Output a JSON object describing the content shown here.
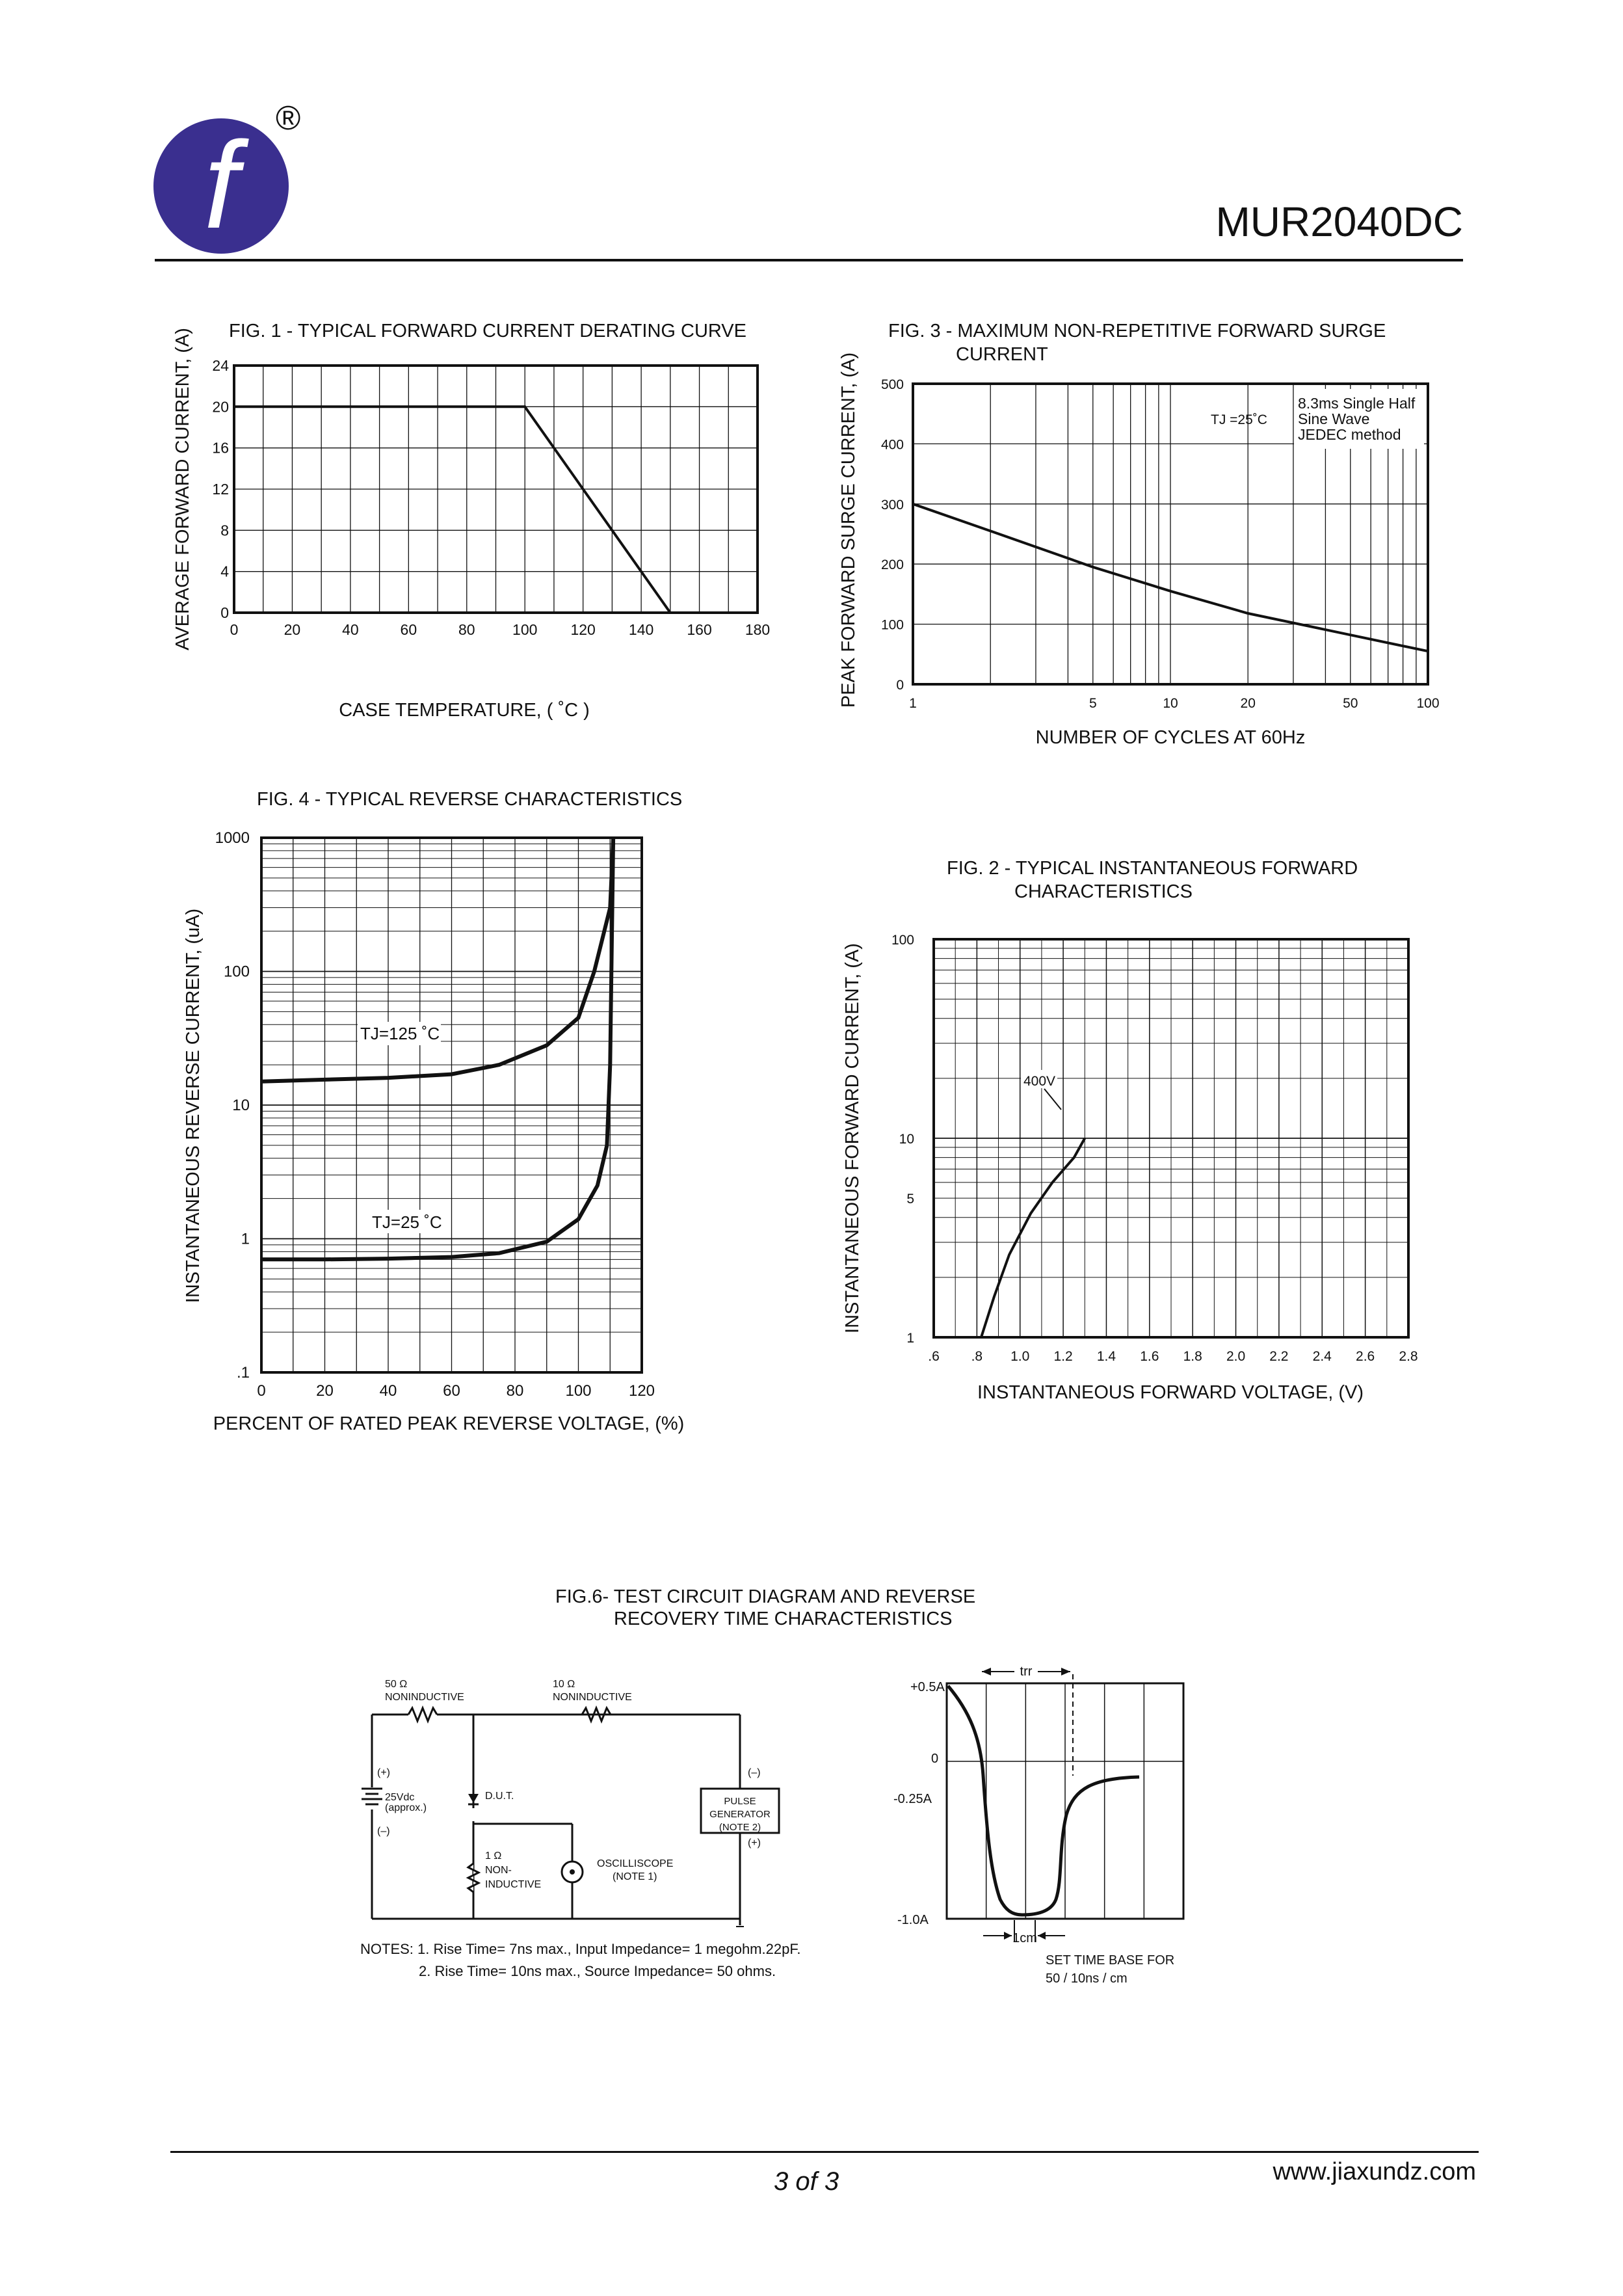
{
  "header": {
    "part_number": "MUR2040DC",
    "logo_letter": "f",
    "registered_mark": "®"
  },
  "footer": {
    "page": "3 of 3",
    "url": "www.jiaxundz.com"
  },
  "chart_data": [
    {
      "id": "fig1",
      "type": "line",
      "title": "FIG. 1 - TYPICAL FORWARD CURRENT DERATING CURVE",
      "xlabel": "CASE TEMPERATURE, ( ˚C )",
      "ylabel": "AVERAGE FORWARD CURRENT, (A)",
      "xlim": [
        0,
        180
      ],
      "ylim": [
        0,
        24
      ],
      "xticks": [
        0,
        20,
        40,
        60,
        80,
        100,
        120,
        140,
        160,
        180
      ],
      "yticks": [
        0,
        4,
        8,
        12,
        16,
        20,
        24
      ],
      "series": [
        {
          "x": [
            0,
            100,
            150
          ],
          "y": [
            20,
            20,
            0
          ]
        }
      ]
    },
    {
      "id": "fig3",
      "type": "line",
      "title": "FIG. 3 - MAXIMUM NON-REPETITIVE FORWARD SURGE",
      "title2": "CURRENT",
      "xlabel": "NUMBER OF CYCLES AT 60Hz",
      "ylabel": "PEAK FORWARD SURGE CURRENT, (A)",
      "xscale": "log",
      "xlim": [
        1,
        100
      ],
      "ylim": [
        0,
        500
      ],
      "xticks": [
        1,
        5,
        10,
        20,
        50,
        100
      ],
      "yticks": [
        0,
        100,
        200,
        300,
        400,
        500
      ],
      "annotations": [
        "TJ =25˚C",
        "8.3ms Single Half",
        "Sine Wave",
        "JEDEC method"
      ],
      "series": [
        {
          "x": [
            1,
            2,
            5,
            10,
            20,
            50,
            100
          ],
          "y": [
            300,
            255,
            195,
            155,
            118,
            82,
            55
          ]
        }
      ]
    },
    {
      "id": "fig4",
      "type": "line",
      "title": "FIG. 4 - TYPICAL REVERSE CHARACTERISTICS",
      "xlabel": "PERCENT OF RATED PEAK REVERSE VOLTAGE, (%)",
      "ylabel": "INSTANTANEOUS REVERSE CURRENT, (uA)",
      "yscale": "log",
      "xlim": [
        0,
        120
      ],
      "ylim": [
        0.1,
        1000
      ],
      "xticks": [
        0,
        20,
        40,
        60,
        80,
        100,
        120
      ],
      "yticks": [
        ".1",
        "1",
        "10",
        "100",
        "1000"
      ],
      "series": [
        {
          "name": "TJ=125 ˚C",
          "x": [
            0,
            20,
            40,
            60,
            75,
            90,
            100,
            105,
            110,
            111
          ],
          "y": [
            15,
            15.5,
            16,
            17,
            20,
            28,
            45,
            100,
            300,
            1000
          ]
        },
        {
          "name": "TJ=25 ˚C",
          "x": [
            0,
            20,
            40,
            60,
            75,
            90,
            100,
            106,
            109,
            110,
            111
          ],
          "y": [
            0.7,
            0.7,
            0.71,
            0.73,
            0.78,
            0.95,
            1.4,
            2.5,
            5,
            20,
            1000
          ]
        }
      ]
    },
    {
      "id": "fig2",
      "type": "line",
      "title": "FIG. 2 - TYPICAL INSTANTANEOUS FORWARD",
      "title2": "CHARACTERISTICS",
      "xlabel": "INSTANTANEOUS FORWARD VOLTAGE, (V)",
      "ylabel": "INSTANTANEOUS FORWARD CURRENT, (A)",
      "yscale": "log",
      "xlim": [
        0.6,
        2.8
      ],
      "ylim": [
        1,
        100
      ],
      "xticks": [
        ".6",
        ".8",
        "1.0",
        "1.2",
        "1.4",
        "1.6",
        "1.8",
        "2.0",
        "2.2",
        "2.4",
        "2.6",
        "2.8"
      ],
      "yticks": [
        "1",
        "5",
        "10",
        "100"
      ],
      "series": [
        {
          "name": "400V",
          "x": [
            0.82,
            0.88,
            0.95,
            1.05,
            1.15,
            1.25,
            1.3
          ],
          "y": [
            1,
            1.6,
            2.6,
            4.2,
            6.0,
            8.0,
            10
          ]
        }
      ]
    },
    {
      "id": "fig6",
      "type": "line",
      "title": "FIG.6- TEST CIRCUIT DIAGRAM AND REVERSE",
      "title2": "RECOVERY TIME CHARACTERISTICS",
      "yticks": [
        "+0.5A",
        "0",
        "-0.25A",
        "-1.0A"
      ],
      "labels": {
        "trr": "trr",
        "unit": "1cm",
        "set_time_1": "SET TIME BASE FOR",
        "set_time_2": "50 / 10ns / cm"
      }
    }
  ],
  "circuit": {
    "r50": "50 Ω",
    "r50_sub": "NONINDUCTIVE",
    "r10": "10 Ω",
    "r10_sub": "NONINDUCTIVE",
    "plus": "(+)",
    "minus": "(–)",
    "battery": "25Vdc",
    "battery_sub": "(approx.)",
    "dut": "D.U.T.",
    "r1": "1 Ω",
    "r1_sub1": "NON-",
    "r1_sub2": "INDUCTIVE",
    "scope": "OSCILLISCOPE",
    "scope_sub": "(NOTE 1)",
    "pulse1": "PULSE",
    "pulse2": "GENERATOR",
    "pulse3": "(NOTE 2)",
    "gen_minus": "(–)",
    "gen_plus": "(+)"
  },
  "notes": {
    "n1": "NOTES: 1. Rise Time= 7ns max., Input Impedance= 1 megohm.22pF.",
    "n2": "2. Rise Time= 10ns max., Source Impedance= 50 ohms."
  }
}
